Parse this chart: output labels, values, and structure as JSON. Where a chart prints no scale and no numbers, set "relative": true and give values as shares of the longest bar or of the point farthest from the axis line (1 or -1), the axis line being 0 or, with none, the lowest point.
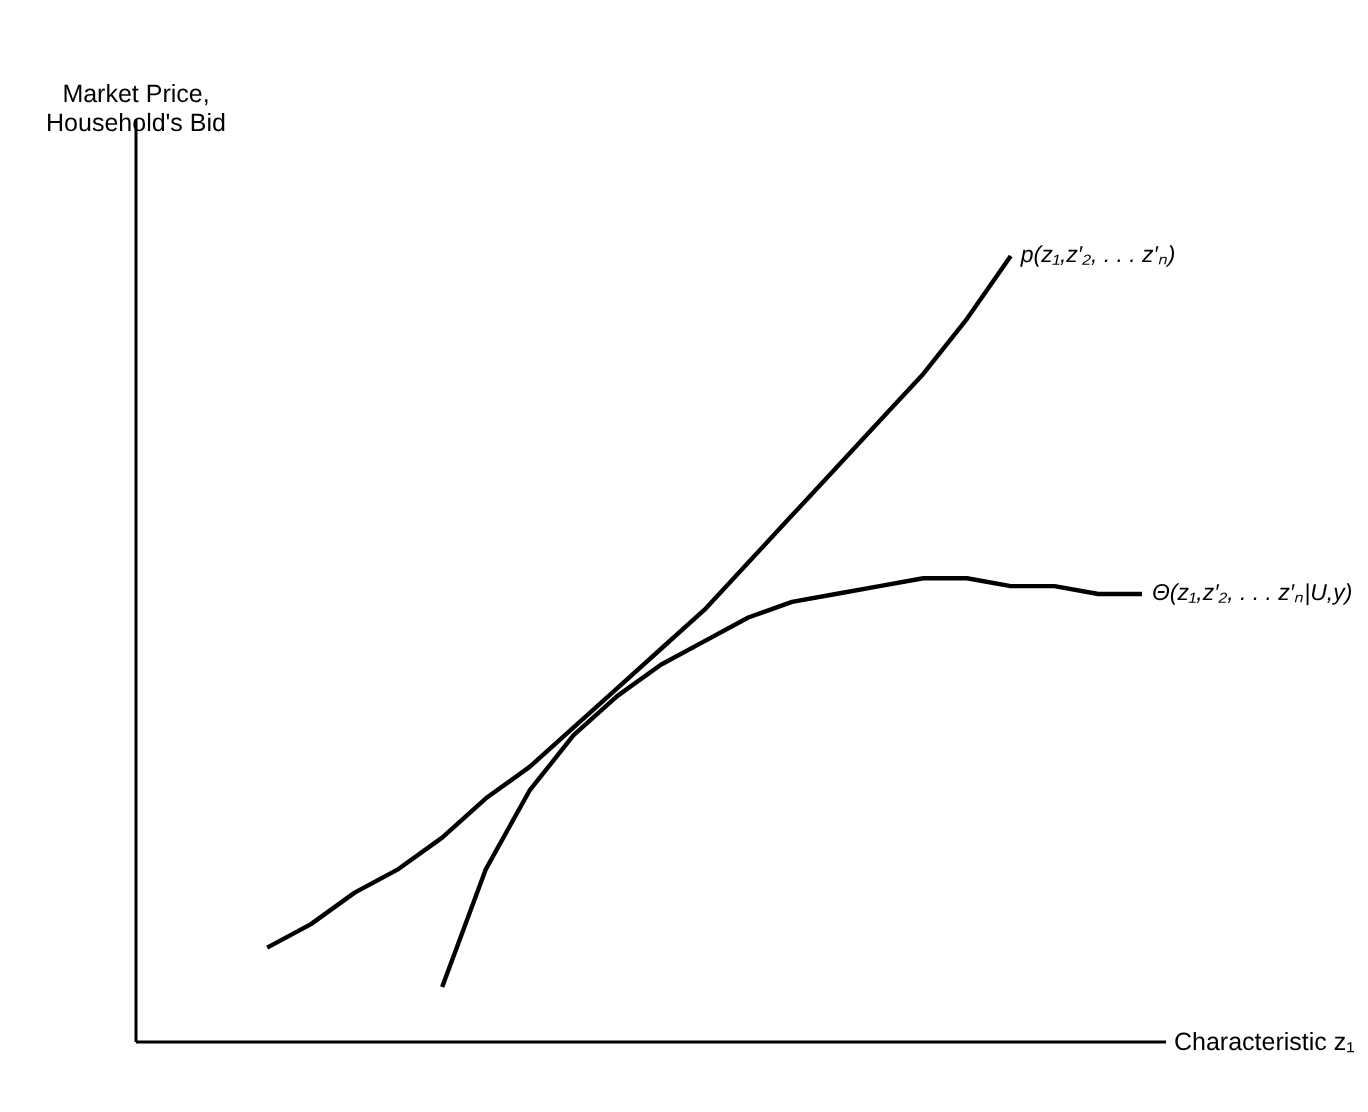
{
  "chart_data": {
    "type": "line",
    "relative": true,
    "xlabel": "Characteristic z₁",
    "ylabel": "Market Price, Household's Bid",
    "categories": [
      null,
      null,
      null,
      null,
      null,
      null,
      null,
      null,
      null,
      null,
      null,
      null,
      null,
      null,
      null,
      null,
      null,
      null,
      null,
      null,
      null
    ],
    "series": [
      {
        "name": "p(z₁,z′₂, . . . z′ₙ)",
        "color": "#000000",
        "values": [
          0.12,
          0.15,
          0.19,
          0.22,
          0.26,
          0.31,
          0.35,
          0.4,
          0.45,
          0.5,
          0.55,
          0.61,
          0.67,
          0.73,
          0.79,
          0.85,
          0.92,
          1,
          null,
          null,
          null
        ]
      },
      {
        "name": "Θ(z₁,z′₂, . . . z′ₙ|U,y)",
        "color": "#000000",
        "values": [
          null,
          null,
          null,
          null,
          0.07,
          0.22,
          0.32,
          0.39,
          0.44,
          0.48,
          0.51,
          0.54,
          0.56,
          0.57,
          0.58,
          0.59,
          0.59,
          0.58,
          0.58,
          0.57,
          0.57
        ]
      }
    ],
    "grid": false,
    "marker": "none",
    "line_style": "solid",
    "tick_labels": false
  }
}
